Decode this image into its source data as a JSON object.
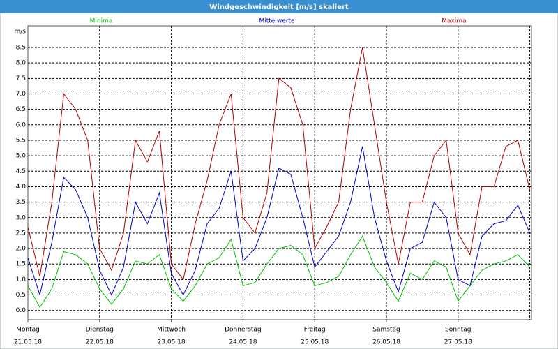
{
  "chart_data": {
    "type": "line",
    "title": "Windgeschwindigkeit [m/s] skaliert",
    "ylabel": "m/s",
    "categories": [
      "21.05.18",
      null,
      null,
      null,
      null,
      null,
      "22.05.18",
      null,
      null,
      null,
      null,
      null,
      "23.05.18",
      null,
      null,
      null,
      null,
      null,
      "24.05.18",
      null,
      null,
      null,
      null,
      null,
      "25.05.18",
      null,
      null,
      null,
      null,
      null,
      "26.05.18",
      null,
      null,
      null,
      null,
      null,
      "27.05.18",
      null,
      null,
      null,
      null,
      null,
      null
    ],
    "weekdays": [
      "Montag",
      "Dienstag",
      "Mittwoch",
      "Donnerstag",
      "Freitag",
      "Samstag",
      "Sonntag"
    ],
    "series": [
      {
        "name": "Minima",
        "color": "#00c000",
        "values": [
          0.8,
          0.1,
          0.7,
          1.9,
          1.8,
          1.5,
          0.7,
          0.2,
          0.7,
          1.6,
          1.5,
          1.8,
          0.7,
          0.3,
          0.8,
          1.5,
          1.7,
          2.3,
          0.8,
          0.9,
          1.5,
          2.0,
          2.1,
          1.8,
          0.8,
          0.9,
          1.1,
          1.8,
          2.4,
          1.4,
          0.9,
          0.3,
          1.2,
          1.0,
          1.6,
          1.4,
          0.3,
          0.8,
          1.3,
          1.5,
          1.6,
          1.8,
          1.4
        ]
      },
      {
        "name": "Mittelwerte",
        "color": "#0000c0",
        "values": [
          1.7,
          0.5,
          2.2,
          4.3,
          3.9,
          3.0,
          1.3,
          0.5,
          1.4,
          3.5,
          2.8,
          3.8,
          1.2,
          0.5,
          1.3,
          2.8,
          3.3,
          4.5,
          1.6,
          2.0,
          3.0,
          4.6,
          4.4,
          3.0,
          1.4,
          1.9,
          2.4,
          3.5,
          5.3,
          3.0,
          1.6,
          0.6,
          2.0,
          2.2,
          3.5,
          3.0,
          1.0,
          0.8,
          2.4,
          2.8,
          2.9,
          3.4,
          2.5
        ]
      },
      {
        "name": "Maxima",
        "color": "#b00000",
        "values": [
          2.7,
          1.1,
          3.5,
          7.0,
          6.5,
          5.5,
          2.0,
          1.3,
          2.5,
          5.5,
          4.8,
          5.8,
          1.5,
          1.0,
          2.8,
          4.2,
          6.0,
          7.0,
          3.0,
          2.5,
          3.8,
          7.5,
          7.2,
          6.0,
          2.0,
          2.7,
          3.5,
          6.5,
          8.5,
          6.0,
          3.5,
          1.5,
          3.5,
          3.5,
          5.0,
          5.5,
          2.5,
          1.8,
          4.0,
          4.0,
          5.3,
          5.5,
          3.9
        ]
      }
    ],
    "ylim": [
      -0.3,
      9.2
    ],
    "yticks": [
      {
        "value": 0,
        "label": "0.0"
      },
      0.5,
      {
        "value": 1,
        "label": "1.0"
      },
      1.5,
      {
        "value": 2,
        "label": "2.0"
      },
      2.5,
      {
        "value": 3,
        "label": "3.0"
      },
      3.5,
      {
        "value": 4,
        "label": "4.0"
      },
      4.5,
      {
        "value": 5,
        "label": "5.0"
      },
      5.5,
      {
        "value": 6,
        "label": "6.0"
      },
      6.5,
      {
        "value": 7,
        "label": "7.0"
      },
      7.5,
      {
        "value": 8,
        "label": "8.0"
      },
      8.5
    ],
    "grid": true
  }
}
